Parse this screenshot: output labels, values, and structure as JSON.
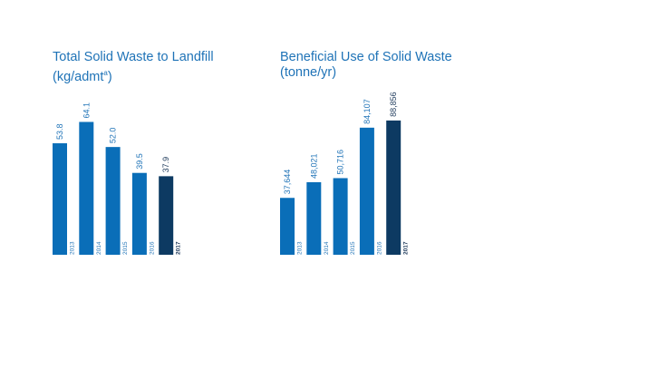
{
  "colors": {
    "bar": "#0a6eb8",
    "bar_latest": "#0d3a62",
    "text": "#1f73b7",
    "text_latest": "#1f3b5c"
  },
  "chart_data": [
    {
      "type": "bar",
      "title": "Total Solid Waste to Landfill",
      "subtitle": "(kg/admt",
      "subtitle_sup": "a",
      "subtitle_close": ")",
      "categories": [
        "2013",
        "2014",
        "2015",
        "2016",
        "2017"
      ],
      "values": [
        53.8,
        64.1,
        52.0,
        39.5,
        37.9
      ],
      "value_labels": [
        "53.8",
        "64.1",
        "52.0",
        "39.5",
        "37.9"
      ],
      "highlight_index": 4,
      "ylim": [
        0,
        70
      ],
      "grid": false
    },
    {
      "type": "bar",
      "title": "Beneficial Use of Solid Waste",
      "subtitle": "(tonne/yr)",
      "categories": [
        "2013",
        "2014",
        "2015",
        "2016",
        "2017"
      ],
      "values": [
        37644,
        48021,
        50716,
        84107,
        88856
      ],
      "value_labels": [
        "37,644",
        "48,021",
        "50,716",
        "84,107",
        "88,856"
      ],
      "highlight_index": 4,
      "ylim": [
        0,
        96000
      ],
      "grid": false
    }
  ]
}
